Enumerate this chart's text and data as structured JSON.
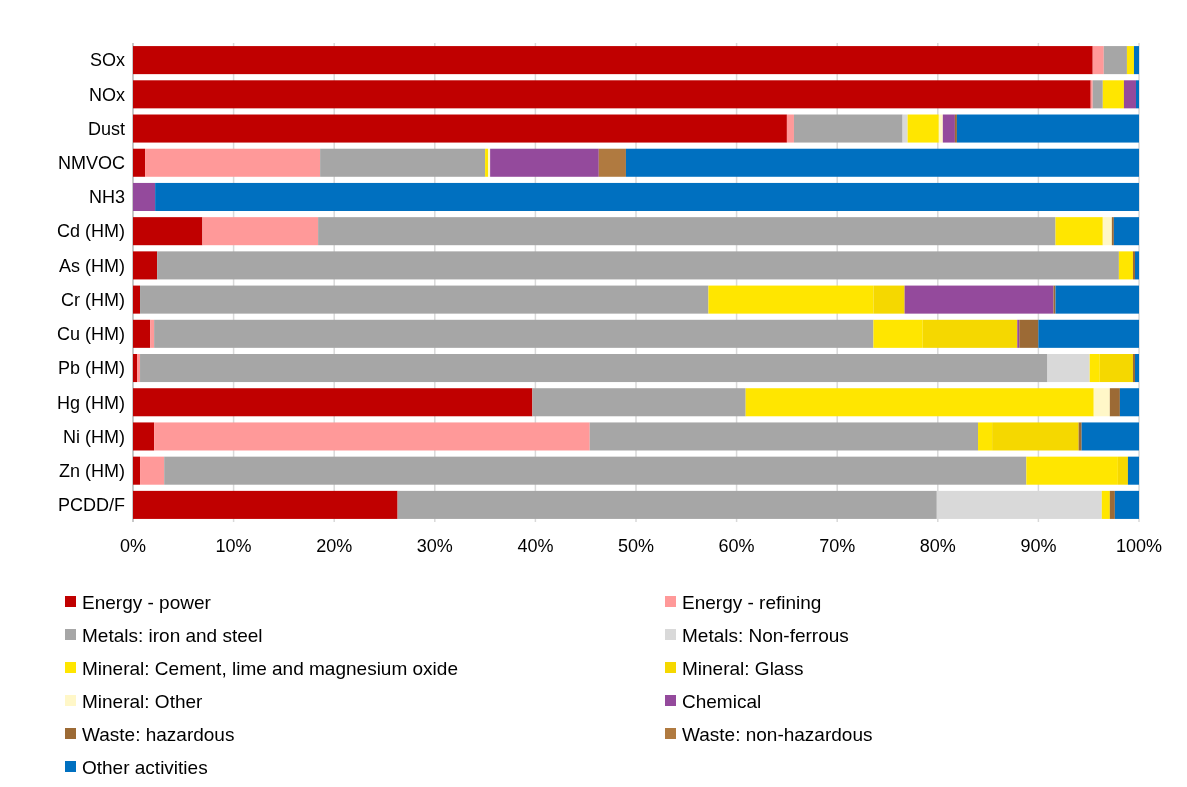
{
  "chart_data": {
    "type": "bar",
    "orientation": "horizontal",
    "stacked": true,
    "categories": [
      "SOx",
      "NOx",
      "Dust",
      "NMVOC",
      "NH3",
      "Cd (HM)",
      "As (HM)",
      "Cr (HM)",
      "Cu (HM)",
      "Pb (HM)",
      "Hg (HM)",
      "Ni (HM)",
      "Zn (HM)",
      "PCDD/F"
    ],
    "series": [
      {
        "name": "Energy - power",
        "color": "#c00000",
        "values": [
          95.4,
          95.2,
          65.0,
          1.2,
          0,
          6.9,
          2.4,
          0.7,
          1.7,
          0.4,
          39.7,
          2.1,
          0.7,
          26.3
        ]
      },
      {
        "name": "Energy - refining",
        "color": "#ff9999",
        "values": [
          1.1,
          0.2,
          0.7,
          17.4,
          0,
          11.5,
          0,
          0,
          0.4,
          0.3,
          0,
          43.3,
          2.4,
          0
        ]
      },
      {
        "name": "Metals: iron and steel",
        "color": "#a6a6a6",
        "values": [
          2.3,
          1.0,
          10.8,
          16.4,
          0,
          73.3,
          95.6,
          56.5,
          71.5,
          90.2,
          21.2,
          38.6,
          85.7,
          53.6
        ]
      },
      {
        "name": "Metals: Non-ferrous",
        "color": "#d9d9d9",
        "values": [
          0,
          0,
          0.5,
          0,
          0,
          0,
          0,
          0,
          0,
          4.2,
          0,
          0,
          0,
          16.4
        ]
      },
      {
        "name": "Mineral: Cement, lime and magnesium oxide",
        "color": "#ffe600",
        "values": [
          0.7,
          2.1,
          3.1,
          0.3,
          0,
          4.7,
          1.4,
          16.4,
          4.9,
          1.0,
          34.6,
          1.4,
          9.1,
          0.8
        ]
      },
      {
        "name": "Mineral: Glass",
        "color": "#f5d800",
        "values": [
          0,
          0,
          0,
          0,
          0,
          0,
          0,
          3.1,
          9.4,
          3.3,
          0,
          8.6,
          1.0,
          0
        ]
      },
      {
        "name": "Mineral: Other",
        "color": "#fff7c8",
        "values": [
          0,
          0,
          0.4,
          0.2,
          0,
          0.9,
          0,
          0,
          0,
          0,
          1.6,
          0,
          0,
          0
        ]
      },
      {
        "name": "Chemical",
        "color": "#944a9c",
        "values": [
          0,
          1.2,
          1.2,
          10.8,
          2.2,
          0,
          0,
          14.8,
          0.2,
          0,
          0,
          0,
          0,
          0
        ]
      },
      {
        "name": "Waste: hazardous",
        "color": "#9c6a35",
        "values": [
          0,
          0,
          0.2,
          0,
          0,
          0.2,
          0.2,
          0.2,
          1.9,
          0.2,
          1.0,
          0.3,
          0,
          0.5
        ]
      },
      {
        "name": "Waste: non-hazardous",
        "color": "#b07a40",
        "values": [
          0,
          0,
          0,
          2.7,
          0,
          0,
          0,
          0,
          0,
          0,
          0,
          0,
          0,
          0
        ]
      },
      {
        "name": "Other activities",
        "color": "#0070c0",
        "values": [
          0.5,
          0.3,
          18.1,
          51.0,
          97.8,
          2.5,
          0.4,
          8.3,
          10.0,
          0.4,
          1.9,
          5.7,
          1.1,
          2.4
        ]
      }
    ],
    "xlim": [
      0,
      100
    ],
    "xticks": [
      {
        "value": 0,
        "label": "0%"
      },
      {
        "value": 10,
        "label": "10%"
      },
      {
        "value": 20,
        "label": "20%"
      },
      {
        "value": 30,
        "label": "30%"
      },
      {
        "value": 40,
        "label": "40%"
      },
      {
        "value": 50,
        "label": "50%"
      },
      {
        "value": 60,
        "label": "60%"
      },
      {
        "value": 70,
        "label": "70%"
      },
      {
        "value": 80,
        "label": "80%"
      },
      {
        "value": 90,
        "label": "90%"
      },
      {
        "value": 100,
        "label": "100%"
      }
    ],
    "grid": "x",
    "legend": "bottom"
  }
}
